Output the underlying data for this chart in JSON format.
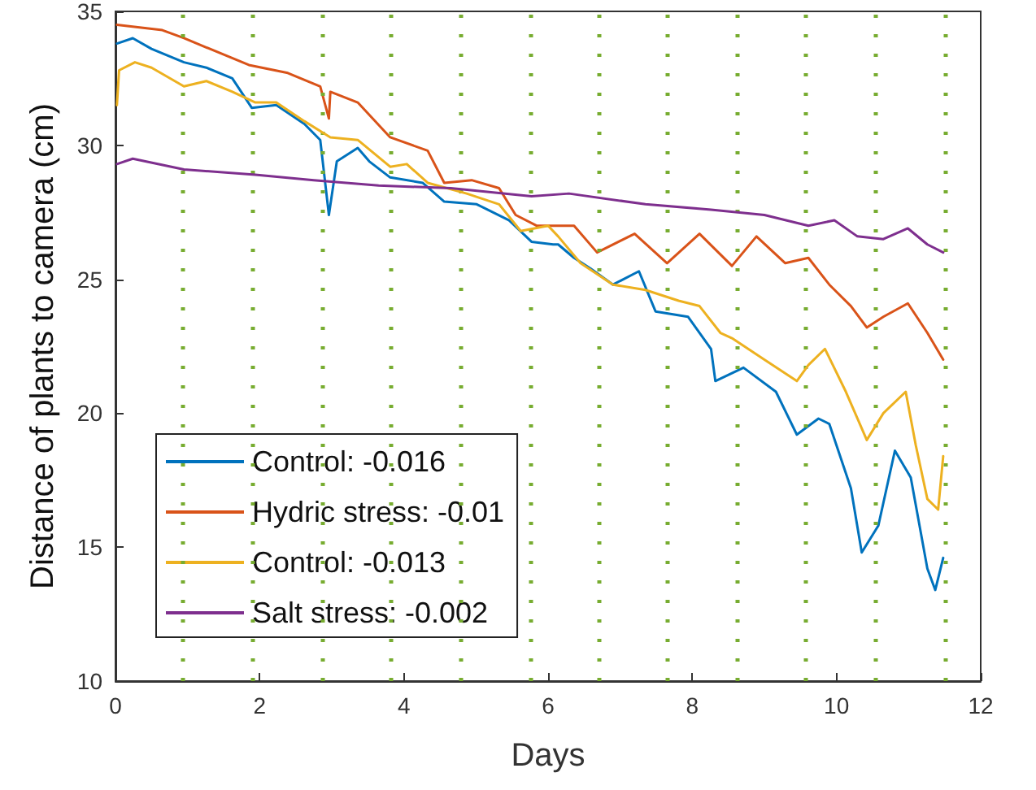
{
  "chart_data": {
    "type": "line",
    "xlabel": "Days",
    "ylabel": "Distance of plants to camera (cm)",
    "xlim": [
      0,
      12
    ],
    "xticks": [
      0,
      2,
      4,
      6,
      8,
      10,
      12
    ],
    "ylim": [
      10,
      35
    ],
    "yticks": [
      10,
      15,
      20,
      25,
      30,
      35
    ],
    "grid": false,
    "legend": "bottom left",
    "marker": "none",
    "line_style": "solid",
    "series": [
      {
        "name": "Control: -0.016",
        "color": "#0072bd",
        "x": [
          0.02,
          0.24,
          0.5,
          0.95,
          1.26,
          1.62,
          1.89,
          2.23,
          2.62,
          2.84,
          2.96,
          3.07,
          3.36,
          3.52,
          3.81,
          4.26,
          4.56,
          5.01,
          5.46,
          5.77,
          6.07,
          6.14,
          6.36,
          6.59,
          6.9,
          7.26,
          7.49,
          7.94,
          8.26,
          8.32,
          8.71,
          9.16,
          9.45,
          9.75,
          9.9,
          10.2,
          10.35,
          10.58,
          10.81,
          11.03,
          11.26,
          11.37,
          11.48
        ],
        "values": [
          33.8,
          34.0,
          33.6,
          33.1,
          32.9,
          32.5,
          31.4,
          31.5,
          30.8,
          30.2,
          27.4,
          29.4,
          29.9,
          29.4,
          28.8,
          28.6,
          27.9,
          27.8,
          27.2,
          26.4,
          26.3,
          26.3,
          25.8,
          25.4,
          24.8,
          25.3,
          23.8,
          23.6,
          22.4,
          21.2,
          21.7,
          20.8,
          19.2,
          19.8,
          19.6,
          17.2,
          14.8,
          15.8,
          18.6,
          17.6,
          14.2,
          13.4,
          14.6
        ]
      },
      {
        "name": "Hydric stress: -0.01",
        "color": "#d95319",
        "x": [
          0.02,
          0.65,
          0.95,
          1.85,
          2.39,
          2.84,
          2.96,
          2.98,
          3.36,
          3.81,
          4.33,
          4.56,
          4.94,
          5.32,
          5.55,
          5.84,
          6.36,
          6.68,
          7.2,
          7.65,
          8.1,
          8.55,
          8.89,
          9.29,
          9.61,
          9.9,
          10.2,
          10.42,
          10.65,
          10.99,
          11.26,
          11.48
        ],
        "values": [
          34.5,
          34.3,
          34.0,
          33.0,
          32.7,
          32.2,
          31.0,
          32.0,
          31.6,
          30.3,
          29.8,
          28.6,
          28.7,
          28.4,
          27.4,
          27.0,
          27.0,
          26.0,
          26.7,
          25.6,
          26.7,
          25.5,
          26.6,
          25.6,
          25.8,
          24.8,
          24.0,
          23.2,
          23.6,
          24.1,
          23.0,
          22.0
        ]
      },
      {
        "name": "Control: -0.013",
        "color": "#edb120",
        "x": [
          0.02,
          0.05,
          0.27,
          0.5,
          0.95,
          1.26,
          1.62,
          1.94,
          2.23,
          2.62,
          2.98,
          3.36,
          3.81,
          4.04,
          4.33,
          4.87,
          5.32,
          5.62,
          6.0,
          6.14,
          6.45,
          6.9,
          7.35,
          7.81,
          8.1,
          8.39,
          8.55,
          9.0,
          9.45,
          9.61,
          9.84,
          10.13,
          10.42,
          10.65,
          10.96,
          11.1,
          11.26,
          11.41,
          11.48
        ],
        "values": [
          31.5,
          32.8,
          33.1,
          32.9,
          32.2,
          32.4,
          32.0,
          31.6,
          31.6,
          30.9,
          30.3,
          30.2,
          29.2,
          29.3,
          28.6,
          28.2,
          27.8,
          26.8,
          27.0,
          26.6,
          25.6,
          24.8,
          24.6,
          24.2,
          24.0,
          23.0,
          22.8,
          22.0,
          21.2,
          21.8,
          22.4,
          20.8,
          19.0,
          20.0,
          20.8,
          18.8,
          16.8,
          16.4,
          18.4
        ]
      },
      {
        "name": "Salt stress: -0.002",
        "color": "#7e2f8e",
        "x": [
          0.02,
          0.24,
          0.95,
          1.94,
          2.75,
          3.65,
          4.65,
          5.77,
          6.29,
          7.35,
          8.26,
          9.0,
          9.61,
          9.97,
          10.29,
          10.65,
          10.99,
          11.26,
          11.48
        ],
        "values": [
          29.3,
          29.5,
          29.1,
          28.9,
          28.7,
          28.5,
          28.4,
          28.1,
          28.2,
          27.8,
          27.6,
          27.4,
          27.0,
          27.2,
          26.6,
          26.5,
          26.9,
          26.3,
          26.0
        ]
      }
    ],
    "ref_lines": [
      {
        "axis": "x",
        "value": 0.94,
        "color": "#77ac30",
        "line_style": "dotted"
      },
      {
        "axis": "x",
        "value": 1.91,
        "color": "#77ac30",
        "line_style": "dotted"
      },
      {
        "axis": "x",
        "value": 2.86,
        "color": "#77ac30",
        "line_style": "dotted"
      },
      {
        "axis": "x",
        "value": 3.82,
        "color": "#77ac30",
        "line_style": "dotted"
      },
      {
        "axis": "x",
        "value": 4.78,
        "color": "#77ac30",
        "line_style": "dotted"
      },
      {
        "axis": "x",
        "value": 5.75,
        "color": "#77ac30",
        "line_style": "dotted"
      },
      {
        "axis": "x",
        "value": 6.71,
        "color": "#77ac30",
        "line_style": "dotted"
      },
      {
        "axis": "x",
        "value": 7.66,
        "color": "#77ac30",
        "line_style": "dotted"
      },
      {
        "axis": "x",
        "value": 8.62,
        "color": "#77ac30",
        "line_style": "dotted"
      },
      {
        "axis": "x",
        "value": 9.58,
        "color": "#77ac30",
        "line_style": "dotted"
      },
      {
        "axis": "x",
        "value": 10.53,
        "color": "#77ac30",
        "line_style": "dotted"
      },
      {
        "axis": "x",
        "value": 11.5,
        "color": "#77ac30",
        "line_style": "dotted"
      }
    ]
  }
}
